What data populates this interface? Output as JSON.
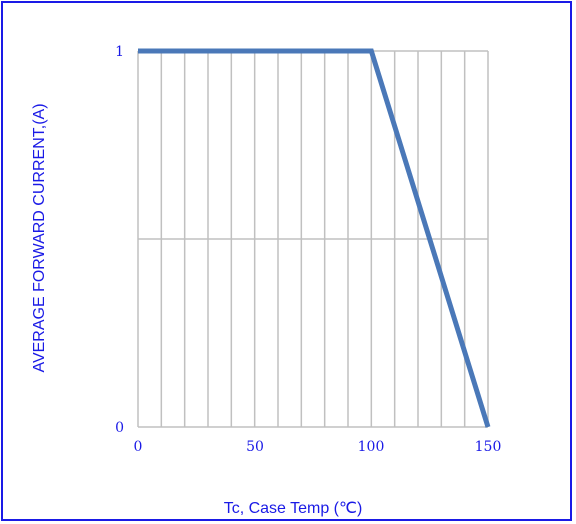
{
  "chart_data": {
    "type": "line",
    "xlabel": "Tc, Case Temp (℃)",
    "ylabel": "AVERAGE FORWARD CURRENT,(A)",
    "xlim": [
      0,
      150
    ],
    "ylim": [
      0,
      1
    ],
    "x_ticks": [
      "0",
      "50",
      "100",
      "150"
    ],
    "y_ticks": [
      "0",
      "1"
    ],
    "grid": true,
    "series": [
      {
        "x": [
          0,
          100,
          150
        ],
        "y": [
          1,
          1,
          0
        ],
        "color": "#4a78b8"
      }
    ],
    "colors": {
      "grid": "#c0c0c0",
      "text": "#1a1ae6",
      "frame": "#1a1ae6",
      "line": "#4a78b8"
    }
  }
}
